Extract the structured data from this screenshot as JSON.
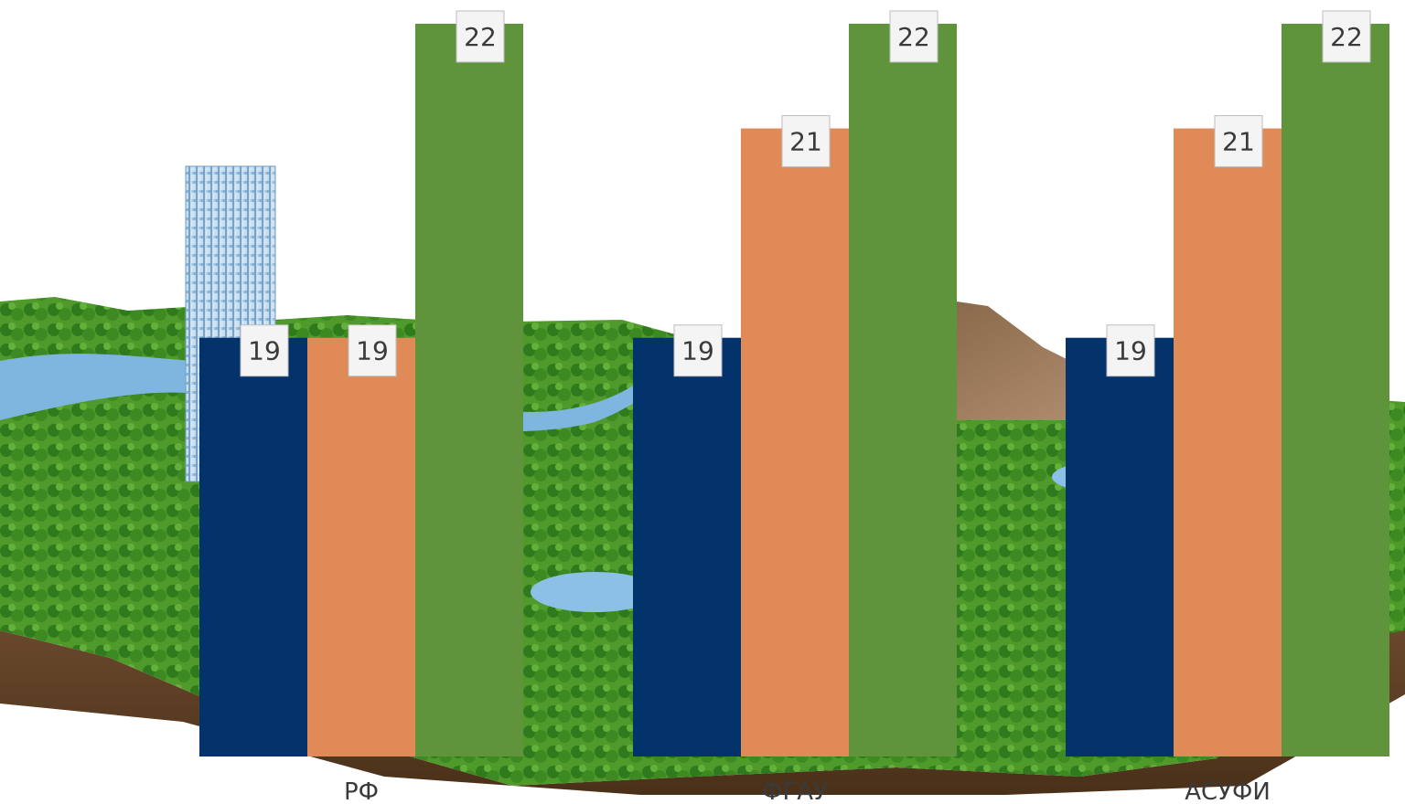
{
  "chart_data": {
    "type": "bar",
    "categories": [
      "РФ",
      "ФГАУ",
      "АСУФИ"
    ],
    "series": [
      {
        "values": [
          19,
          19,
          19
        ],
        "color": "#04336b"
      },
      {
        "values": [
          19,
          21,
          21
        ],
        "color": "#e08a58"
      },
      {
        "values": [
          22,
          22,
          22
        ],
        "color": "#5f943c"
      }
    ],
    "data_labels": true,
    "grid": false,
    "legend": "none"
  }
}
